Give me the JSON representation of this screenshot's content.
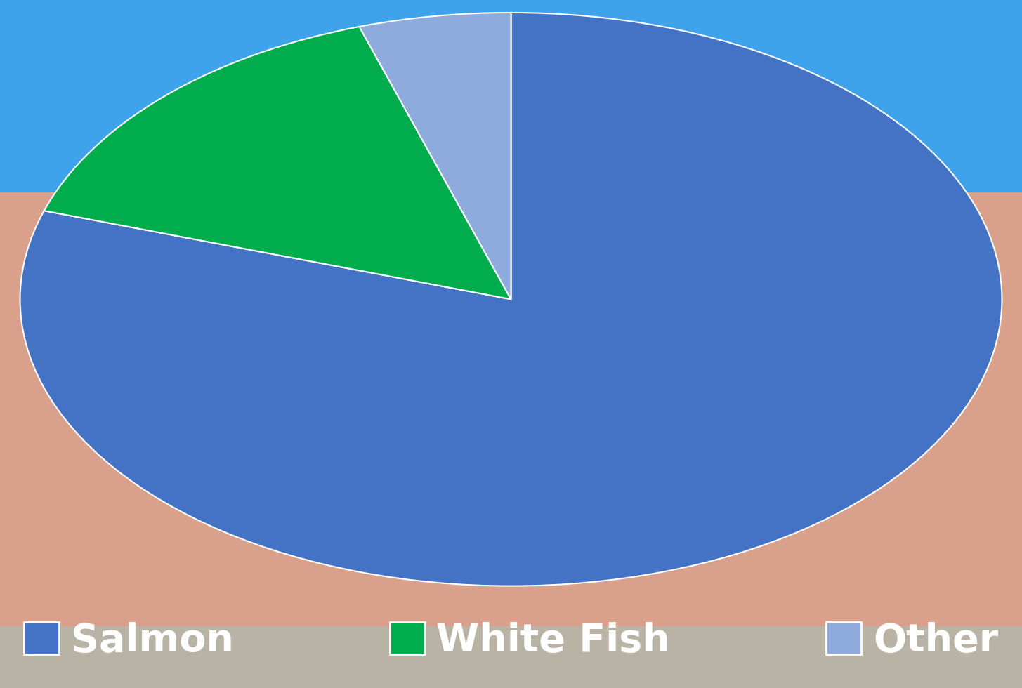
{
  "chart_data": {
    "type": "pie",
    "categories": [
      "Salmon",
      "White Fish",
      "Other"
    ],
    "values": [
      80,
      15,
      5
    ],
    "colors": [
      "#4472c4",
      "#00ac4c",
      "#8faadc"
    ],
    "legend": "bottom"
  }
}
